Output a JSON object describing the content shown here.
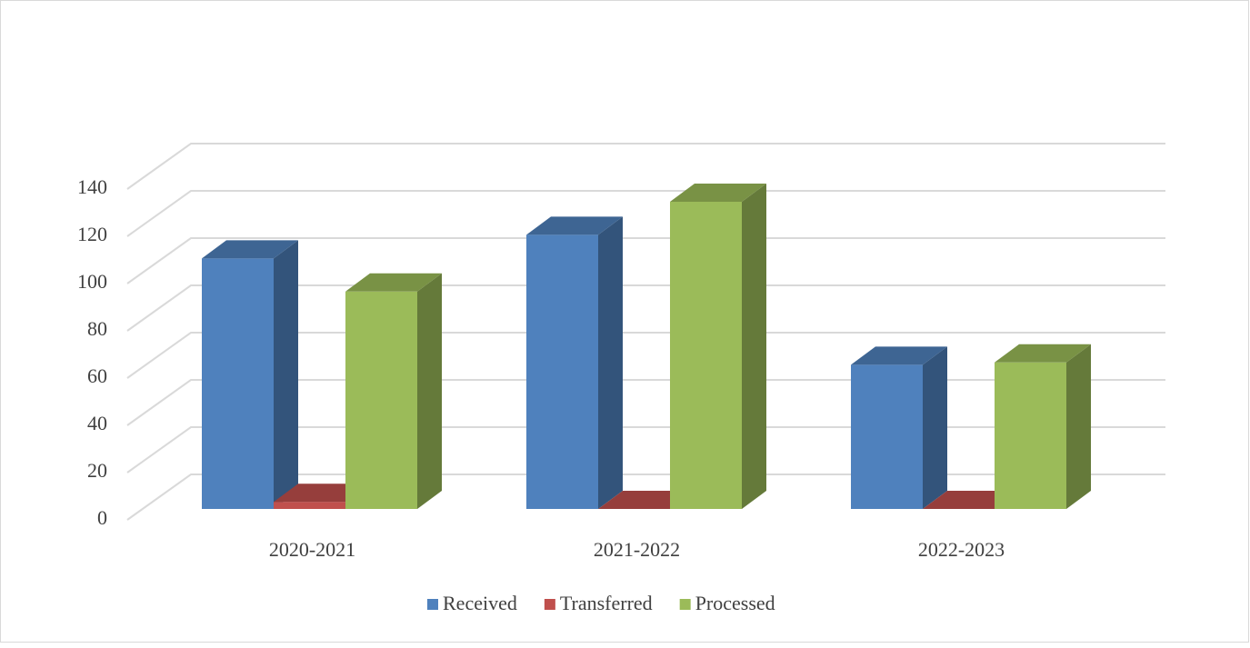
{
  "chart_data": {
    "type": "bar3d",
    "categories": [
      "2020-2021",
      "2021-2022",
      "2022-2023"
    ],
    "series": [
      {
        "name": "Received",
        "color": "#4f81bd",
        "values": [
          106,
          116,
          61
        ]
      },
      {
        "name": "Transferred",
        "color": "#c0504d",
        "values": [
          3,
          0,
          0
        ]
      },
      {
        "name": "Processed",
        "color": "#9bbb59",
        "values": [
          92,
          130,
          62
        ]
      }
    ],
    "ylim": [
      0,
      140
    ],
    "yticks": [
      0,
      20,
      40,
      60,
      80,
      100,
      120,
      140
    ],
    "grid": true,
    "legend": "bottom"
  }
}
